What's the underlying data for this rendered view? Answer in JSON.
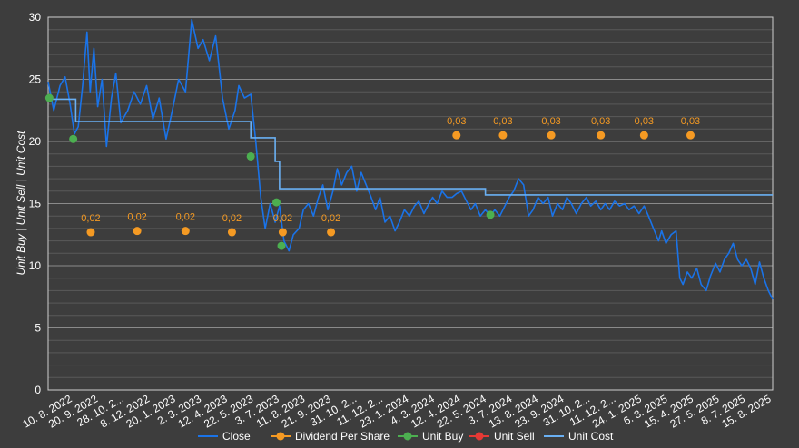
{
  "chart_data": {
    "type": "line",
    "title": "",
    "xlabel": "",
    "ylabel": "Unit Buy | Unit Sell | Unit Cost",
    "ylim": [
      0,
      30
    ],
    "y_ticks": [
      "0",
      "5",
      "10",
      "15",
      "20",
      "25",
      "30"
    ],
    "grid": true,
    "legend_position": "bottom",
    "x_range": [
      "2022-07-01",
      "2025-08-29"
    ],
    "x_tick_labels": [
      "10. 8. 2022",
      "20. 9. 2022",
      "28. 10. 2...",
      "8. 12. 2022",
      "20. 1. 2023",
      "2. 3. 2023",
      "12. 4. 2023",
      "22. 5. 2023",
      "3. 7. 2023",
      "11. 8. 2023",
      "21. 9. 2023",
      "31. 10. 2...",
      "11. 12. 2...",
      "23. 1. 2024",
      "4. 3. 2024",
      "12. 4. 2024",
      "22. 5. 2024",
      "3. 7. 2024",
      "13. 8. 2024",
      "23. 9. 2024",
      "31. 10. 2...",
      "11. 12. 2...",
      "24. 1. 2025",
      "6. 3. 2025",
      "15. 4. 2025",
      "27. 5. 2025",
      "8. 7. 2025",
      "15. 8. 2025"
    ],
    "colors": {
      "close": "#1a73e8",
      "dividend": "#f59a23",
      "buy": "#4caf50",
      "sell": "#e53935",
      "cost": "#6ab0f3"
    },
    "series": [
      {
        "key": "close",
        "name": "Close",
        "points": [
          [
            "2022-07-01",
            24.8
          ],
          [
            "2022-07-10",
            22.5
          ],
          [
            "2022-07-20",
            24.5
          ],
          [
            "2022-07-28",
            25.2
          ],
          [
            "2022-08-05",
            23.0
          ],
          [
            "2022-08-12",
            20.6
          ],
          [
            "2022-08-18",
            21.2
          ],
          [
            "2022-08-25",
            24.5
          ],
          [
            "2022-09-01",
            28.8
          ],
          [
            "2022-09-06",
            24.0
          ],
          [
            "2022-09-12",
            27.5
          ],
          [
            "2022-09-18",
            22.8
          ],
          [
            "2022-09-25",
            25.0
          ],
          [
            "2022-10-02",
            19.6
          ],
          [
            "2022-10-10",
            23.5
          ],
          [
            "2022-10-17",
            25.5
          ],
          [
            "2022-10-25",
            21.5
          ],
          [
            "2022-11-05",
            22.5
          ],
          [
            "2022-11-15",
            24.0
          ],
          [
            "2022-11-25",
            23.0
          ],
          [
            "2022-12-05",
            24.5
          ],
          [
            "2022-12-15",
            21.8
          ],
          [
            "2022-12-25",
            23.5
          ],
          [
            "2023-01-05",
            20.2
          ],
          [
            "2023-01-15",
            22.5
          ],
          [
            "2023-01-25",
            25.0
          ],
          [
            "2023-02-05",
            24.0
          ],
          [
            "2023-02-15",
            29.8
          ],
          [
            "2023-02-25",
            27.5
          ],
          [
            "2023-03-05",
            28.2
          ],
          [
            "2023-03-15",
            26.5
          ],
          [
            "2023-03-25",
            28.5
          ],
          [
            "2023-04-05",
            23.5
          ],
          [
            "2023-04-15",
            21.0
          ],
          [
            "2023-04-25",
            22.5
          ],
          [
            "2023-05-01",
            24.5
          ],
          [
            "2023-05-10",
            23.5
          ],
          [
            "2023-05-20",
            23.8
          ],
          [
            "2023-05-28",
            20.0
          ],
          [
            "2023-06-05",
            15.5
          ],
          [
            "2023-06-12",
            13.0
          ],
          [
            "2023-06-20",
            15.0
          ],
          [
            "2023-06-28",
            13.5
          ],
          [
            "2023-07-05",
            14.8
          ],
          [
            "2023-07-12",
            12.0
          ],
          [
            "2023-07-20",
            11.2
          ],
          [
            "2023-07-27",
            12.5
          ],
          [
            "2023-08-05",
            13.0
          ],
          [
            "2023-08-12",
            14.5
          ],
          [
            "2023-08-20",
            15.0
          ],
          [
            "2023-08-28",
            14.0
          ],
          [
            "2023-09-05",
            15.5
          ],
          [
            "2023-09-12",
            16.5
          ],
          [
            "2023-09-20",
            14.5
          ],
          [
            "2023-09-28",
            16.0
          ],
          [
            "2023-10-05",
            17.8
          ],
          [
            "2023-10-12",
            16.5
          ],
          [
            "2023-10-20",
            17.5
          ],
          [
            "2023-10-28",
            18.0
          ],
          [
            "2023-11-05",
            16.0
          ],
          [
            "2023-11-12",
            17.5
          ],
          [
            "2023-11-20",
            16.5
          ],
          [
            "2023-11-28",
            15.5
          ],
          [
            "2023-12-05",
            14.5
          ],
          [
            "2023-12-12",
            15.5
          ],
          [
            "2023-12-20",
            13.5
          ],
          [
            "2023-12-28",
            14.0
          ],
          [
            "2024-01-05",
            12.8
          ],
          [
            "2024-01-12",
            13.5
          ],
          [
            "2024-01-20",
            14.5
          ],
          [
            "2024-01-28",
            14.0
          ],
          [
            "2024-02-05",
            14.8
          ],
          [
            "2024-02-12",
            15.2
          ],
          [
            "2024-02-20",
            14.2
          ],
          [
            "2024-02-28",
            15.0
          ],
          [
            "2024-03-05",
            15.5
          ],
          [
            "2024-03-12",
            15.0
          ],
          [
            "2024-03-20",
            16.0
          ],
          [
            "2024-03-28",
            15.5
          ],
          [
            "2024-04-05",
            15.5
          ],
          [
            "2024-04-12",
            15.8
          ],
          [
            "2024-04-20",
            16.0
          ],
          [
            "2024-04-28",
            15.2
          ],
          [
            "2024-05-05",
            14.5
          ],
          [
            "2024-05-12",
            15.0
          ],
          [
            "2024-05-20",
            14.0
          ],
          [
            "2024-05-28",
            14.5
          ],
          [
            "2024-06-05",
            14.0
          ],
          [
            "2024-06-12",
            14.5
          ],
          [
            "2024-06-20",
            14.0
          ],
          [
            "2024-06-28",
            14.8
          ],
          [
            "2024-07-05",
            15.5
          ],
          [
            "2024-07-12",
            16.0
          ],
          [
            "2024-07-20",
            17.0
          ],
          [
            "2024-07-28",
            16.5
          ],
          [
            "2024-08-05",
            14.0
          ],
          [
            "2024-08-12",
            14.5
          ],
          [
            "2024-08-20",
            15.5
          ],
          [
            "2024-08-28",
            15.0
          ],
          [
            "2024-09-05",
            15.5
          ],
          [
            "2024-09-12",
            14.0
          ],
          [
            "2024-09-20",
            15.0
          ],
          [
            "2024-09-28",
            14.5
          ],
          [
            "2024-10-05",
            15.5
          ],
          [
            "2024-10-12",
            15.0
          ],
          [
            "2024-10-20",
            14.2
          ],
          [
            "2024-10-28",
            15.0
          ],
          [
            "2024-11-05",
            15.5
          ],
          [
            "2024-11-12",
            14.8
          ],
          [
            "2024-11-20",
            15.2
          ],
          [
            "2024-11-28",
            14.5
          ],
          [
            "2024-12-05",
            15.0
          ],
          [
            "2024-12-12",
            14.5
          ],
          [
            "2024-12-20",
            15.2
          ],
          [
            "2024-12-28",
            14.8
          ],
          [
            "2025-01-05",
            15.0
          ],
          [
            "2025-01-12",
            14.5
          ],
          [
            "2025-01-20",
            14.8
          ],
          [
            "2025-01-28",
            14.2
          ],
          [
            "2025-02-05",
            14.8
          ],
          [
            "2025-02-12",
            14.0
          ],
          [
            "2025-02-20",
            13.0
          ],
          [
            "2025-02-28",
            12.0
          ],
          [
            "2025-03-05",
            12.8
          ],
          [
            "2025-03-12",
            11.8
          ],
          [
            "2025-03-20",
            12.5
          ],
          [
            "2025-03-28",
            12.8
          ],
          [
            "2025-04-03",
            9.0
          ],
          [
            "2025-04-08",
            8.5
          ],
          [
            "2025-04-15",
            9.5
          ],
          [
            "2025-04-22",
            9.0
          ],
          [
            "2025-04-30",
            9.8
          ],
          [
            "2025-05-07",
            8.5
          ],
          [
            "2025-05-15",
            8.0
          ],
          [
            "2025-05-22",
            9.2
          ],
          [
            "2025-05-30",
            10.2
          ],
          [
            "2025-06-06",
            9.5
          ],
          [
            "2025-06-13",
            10.5
          ],
          [
            "2025-06-20",
            11.0
          ],
          [
            "2025-06-27",
            11.8
          ],
          [
            "2025-07-04",
            10.5
          ],
          [
            "2025-07-11",
            10.0
          ],
          [
            "2025-07-18",
            10.5
          ],
          [
            "2025-07-25",
            9.8
          ],
          [
            "2025-08-01",
            8.5
          ],
          [
            "2025-08-08",
            10.3
          ],
          [
            "2025-08-15",
            9.0
          ],
          [
            "2025-08-22",
            8.0
          ],
          [
            "2025-08-29",
            7.3
          ]
        ]
      },
      {
        "key": "cost",
        "name": "Unit Cost",
        "step": true,
        "points": [
          [
            "2022-07-01",
            23.4
          ],
          [
            "2022-08-14",
            21.6
          ],
          [
            "2023-05-20",
            20.3
          ],
          [
            "2023-06-28",
            18.4
          ],
          [
            "2023-07-05",
            16.2
          ],
          [
            "2024-05-28",
            15.7
          ],
          [
            "2025-08-29",
            15.7
          ]
        ]
      },
      {
        "key": "dividend",
        "name": "Dividend Per Share",
        "label_value": "0,02 / 0,03",
        "points": [
          [
            "2022-09-07",
            12.7,
            "0,02"
          ],
          [
            "2022-11-20",
            12.8,
            "0,02"
          ],
          [
            "2023-02-05",
            12.8,
            "0,02"
          ],
          [
            "2023-04-20",
            12.7,
            "0,02"
          ],
          [
            "2023-07-10",
            12.7,
            "0,02"
          ],
          [
            "2023-09-25",
            12.7,
            "0,02"
          ],
          [
            "2024-04-12",
            20.5,
            "0,03"
          ],
          [
            "2024-06-25",
            20.5,
            "0,03"
          ],
          [
            "2024-09-10",
            20.5,
            "0,03"
          ],
          [
            "2024-11-28",
            20.5,
            "0,03"
          ],
          [
            "2025-02-05",
            20.5,
            "0,03"
          ],
          [
            "2025-04-20",
            20.5,
            "0,03"
          ]
        ]
      },
      {
        "key": "buy",
        "name": "Unit Buy",
        "points": [
          [
            "2022-07-03",
            23.5
          ],
          [
            "2022-08-10",
            20.2
          ],
          [
            "2023-05-20",
            18.8
          ],
          [
            "2023-06-30",
            15.1
          ],
          [
            "2023-07-08",
            11.6
          ],
          [
            "2024-06-05",
            14.1
          ]
        ]
      },
      {
        "key": "sell",
        "name": "Unit Sell",
        "points": []
      }
    ]
  },
  "legend": [
    {
      "key": "close",
      "label": "Close",
      "marker": "line"
    },
    {
      "key": "dividend",
      "label": "Dividend Per Share",
      "marker": "dot"
    },
    {
      "key": "buy",
      "label": "Unit Buy",
      "marker": "dot"
    },
    {
      "key": "sell",
      "label": "Unit Sell",
      "marker": "dot"
    },
    {
      "key": "cost",
      "label": "Unit Cost",
      "marker": "line"
    }
  ]
}
